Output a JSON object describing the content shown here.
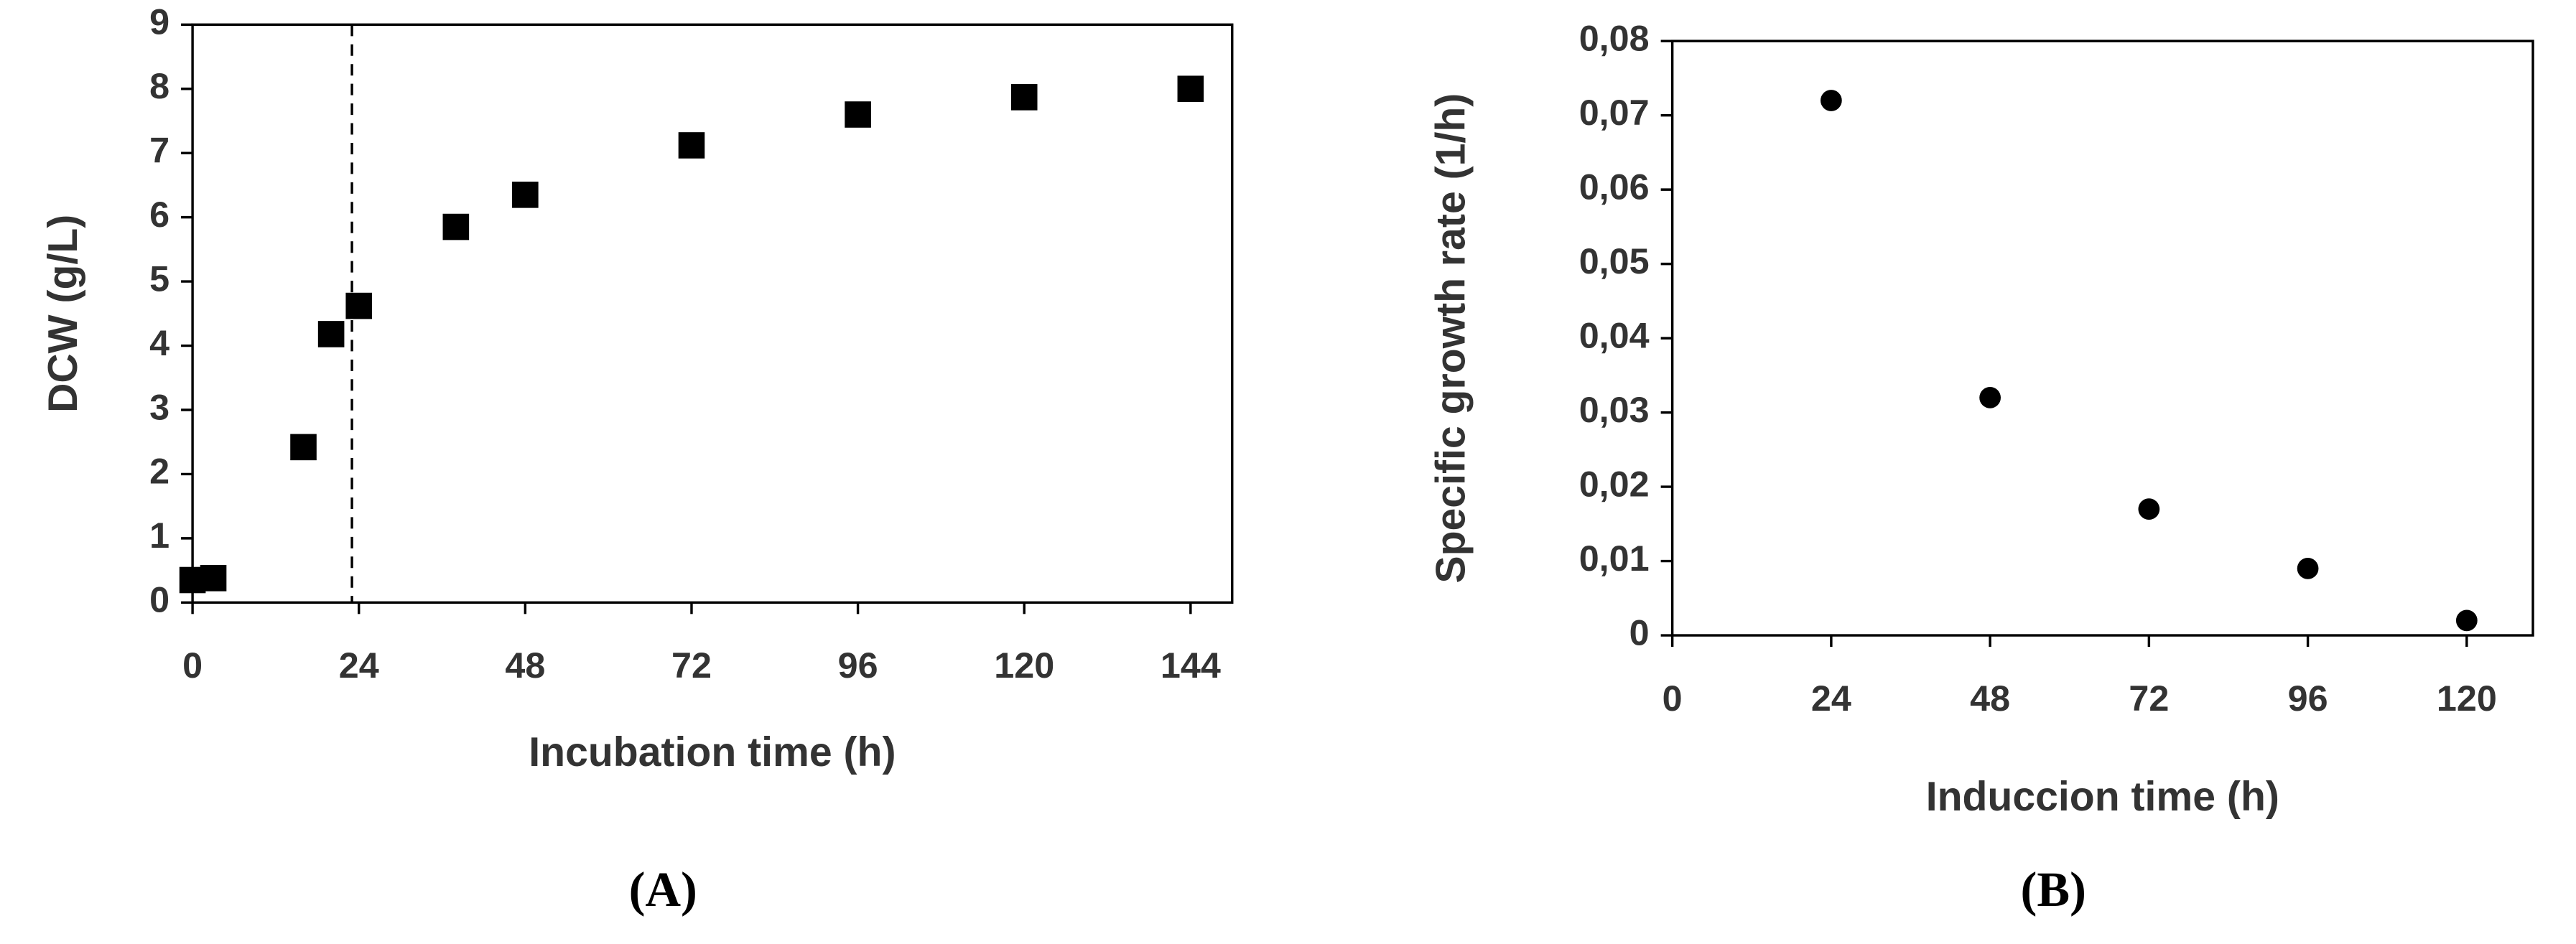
{
  "chart_data": [
    {
      "type": "scatter",
      "ylabel": "DCW (g/L)",
      "xlabel": "Incubation time (h)",
      "panel_label": "(A)",
      "x": [
        0,
        3,
        16,
        20,
        24,
        38,
        48,
        72,
        96,
        120,
        144
      ],
      "values": [
        0.35,
        0.38,
        2.42,
        4.18,
        4.62,
        5.85,
        6.35,
        7.12,
        7.6,
        7.87,
        8.0
      ],
      "marker": "square",
      "color": "#000000",
      "xlim": [
        0,
        150
      ],
      "xticks": [
        0,
        24,
        48,
        72,
        96,
        120,
        144
      ],
      "ylim": [
        0,
        9
      ],
      "yticks": [
        0,
        1,
        2,
        3,
        4,
        5,
        6,
        7,
        8,
        9
      ],
      "vline": 23
    },
    {
      "type": "scatter",
      "ylabel": "Specific growth rate (1/h)",
      "xlabel": "Induccion time (h)",
      "panel_label": "(B)",
      "x": [
        24,
        48,
        72,
        96,
        120
      ],
      "values": [
        0.072,
        0.032,
        0.017,
        0.009,
        0.002
      ],
      "marker": "circle",
      "color": "#000000",
      "xlim": [
        0,
        130
      ],
      "xticks": [
        0,
        24,
        48,
        72,
        96,
        120
      ],
      "ylim": [
        0,
        0.08
      ],
      "yticks": [
        0,
        {
          "value": 0.01,
          "label": "0,01"
        },
        {
          "value": 0.02,
          "label": "0,02"
        },
        {
          "value": 0.03,
          "label": "0,03"
        },
        {
          "value": 0.04,
          "label": "0,04"
        },
        {
          "value": 0.05,
          "label": "0,05"
        },
        {
          "value": 0.06,
          "label": "0,06"
        },
        {
          "value": 0.07,
          "label": "0,07"
        },
        {
          "value": 0.08,
          "label": "0,08"
        }
      ]
    }
  ]
}
